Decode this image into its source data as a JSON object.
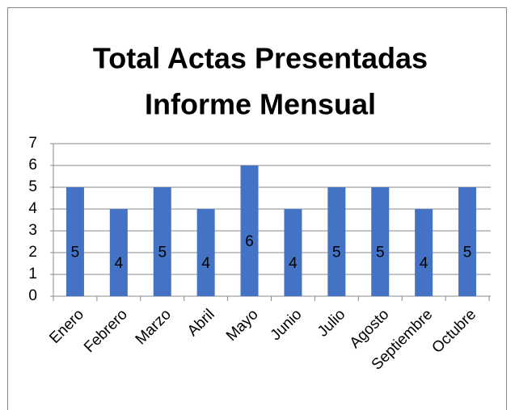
{
  "chart_data": {
    "type": "bar",
    "title": [
      "Total Actas Presentadas",
      "Informe Mensual"
    ],
    "categories": [
      "Enero",
      "Febrero",
      "Marzo",
      "Abril",
      "Mayo",
      "Junio",
      "Julio",
      "Agosto",
      "Septiembre",
      "Octubre"
    ],
    "values": [
      5,
      4,
      5,
      4,
      6,
      4,
      5,
      5,
      4,
      5
    ],
    "color": "#4472c4",
    "ylim": [
      0,
      7
    ],
    "yticks": [
      0,
      1,
      2,
      3,
      4,
      5,
      6,
      7
    ],
    "grid": true
  }
}
